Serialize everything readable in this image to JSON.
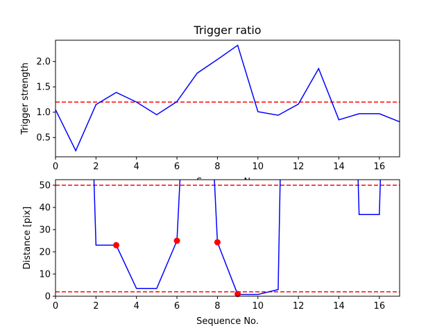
{
  "chart_data": [
    {
      "type": "line",
      "title": "Trigger ratio",
      "xlabel": "Sequence No.",
      "ylabel": "Trigger strength",
      "xlim": [
        0,
        17
      ],
      "ylim": [
        0.12,
        2.42
      ],
      "xticks": [
        0,
        2,
        4,
        6,
        8,
        10,
        12,
        14,
        16
      ],
      "yticks": [
        0.5,
        1.0,
        1.5,
        2.0
      ],
      "ytick_labels": [
        "0.5",
        "1.0",
        "1.5",
        "2.0"
      ],
      "grid": false,
      "series": [
        {
          "color": "#0000ff",
          "x": [
            0,
            1,
            2,
            3,
            4,
            5,
            6,
            7,
            8,
            9,
            10,
            11,
            12,
            13,
            14,
            15,
            16,
            17
          ],
          "values": [
            1.05,
            0.24,
            1.15,
            1.39,
            1.2,
            0.95,
            1.21,
            1.77,
            2.04,
            2.32,
            1.01,
            0.94,
            1.16,
            1.86,
            0.85,
            0.97,
            0.97,
            0.81
          ]
        }
      ],
      "hlines": [
        {
          "y": 1.2,
          "color": "#ff0000",
          "style": "dashed"
        }
      ]
    },
    {
      "type": "line",
      "title": "",
      "xlabel": "Sequence No.",
      "ylabel": "Distance [pix]",
      "xlim": [
        0,
        17
      ],
      "ylim": [
        0,
        52.5
      ],
      "xticks": [
        0,
        2,
        4,
        6,
        8,
        10,
        12,
        14,
        16
      ],
      "yticks": [
        0,
        10,
        20,
        30,
        40,
        50
      ],
      "ytick_labels": [
        "0",
        "10",
        "20",
        "30",
        "40",
        "50"
      ],
      "grid": false,
      "series": [
        {
          "color": "#0000ff",
          "x": [
            1.9,
            2,
            3,
            4,
            5,
            6,
            6.15,
            null,
            7.85,
            8,
            9,
            10,
            11,
            11.1,
            null,
            14.95,
            15,
            16,
            16.05
          ],
          "values": [
            52.5,
            23,
            23,
            3.5,
            3.5,
            25,
            52.5,
            null,
            52.5,
            24.3,
            0.8,
            0.8,
            3,
            52.5,
            null,
            52.5,
            36.8,
            36.8,
            52.5
          ]
        }
      ],
      "markers": {
        "color": "#ff0000",
        "x": [
          3,
          6,
          8,
          9
        ],
        "values": [
          23,
          25,
          24.3,
          1
        ]
      },
      "hlines": [
        {
          "y": 50,
          "color": "#ff0000",
          "style": "dashed"
        },
        {
          "y": 2,
          "color": "#ff0000",
          "style": "dashed"
        }
      ]
    }
  ]
}
